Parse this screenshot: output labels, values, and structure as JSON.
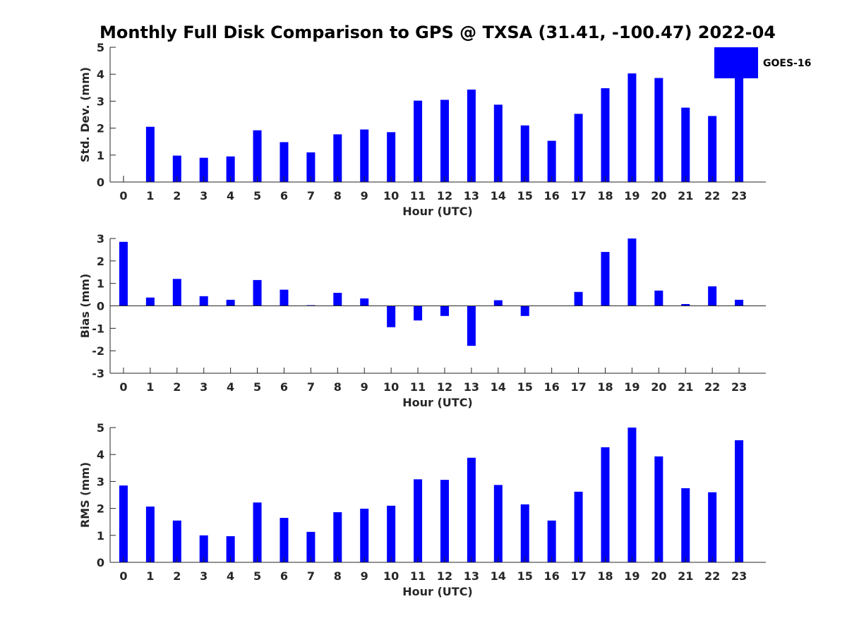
{
  "title": "Monthly Full Disk Comparison to GPS @ TXSA (31.41, -100.47) 2022-04",
  "legend": {
    "label": "GOES-16",
    "color": "#0000ff",
    "placement": "top-right"
  },
  "chart_data": [
    {
      "type": "bar",
      "name": "stddev",
      "xlabel": "Hour (UTC)",
      "ylabel": "Std. Dev. (mm)",
      "ylim": [
        0,
        5
      ],
      "yticks": [
        0,
        1,
        2,
        3,
        4,
        5
      ],
      "categories": [
        0,
        1,
        2,
        3,
        4,
        5,
        6,
        7,
        8,
        9,
        10,
        11,
        12,
        13,
        14,
        15,
        16,
        17,
        18,
        19,
        20,
        21,
        22,
        23
      ],
      "series": [
        {
          "name": "GOES-16",
          "color": "#0000ff",
          "values": [
            0.0,
            2.05,
            0.98,
            0.9,
            0.95,
            1.92,
            1.48,
            1.1,
            1.77,
            1.95,
            1.85,
            3.02,
            3.05,
            3.43,
            2.87,
            2.1,
            1.53,
            2.53,
            3.48,
            4.03,
            3.86,
            2.76,
            2.45,
            3.85
          ]
        }
      ],
      "grid": false
    },
    {
      "type": "bar",
      "name": "bias",
      "xlabel": "Hour (UTC)",
      "ylabel": "Bias (mm)",
      "ylim": [
        -3,
        3
      ],
      "yticks": [
        -3,
        -2,
        -1,
        0,
        1,
        2,
        3
      ],
      "zero_line": true,
      "categories": [
        0,
        1,
        2,
        3,
        4,
        5,
        6,
        7,
        8,
        9,
        10,
        11,
        12,
        13,
        14,
        15,
        16,
        17,
        18,
        19,
        20,
        21,
        22,
        23
      ],
      "series": [
        {
          "name": "GOES-16",
          "color": "#0000ff",
          "values": [
            2.85,
            0.37,
            1.2,
            0.43,
            0.27,
            1.15,
            0.72,
            0.03,
            0.58,
            0.33,
            -0.95,
            -0.65,
            -0.45,
            -1.78,
            0.25,
            -0.45,
            0.0,
            0.62,
            2.4,
            3.0,
            0.68,
            0.08,
            0.87,
            0.27
          ]
        }
      ],
      "grid": false
    },
    {
      "type": "bar",
      "name": "rms",
      "xlabel": "Hour (UTC)",
      "ylabel": "RMS (mm)",
      "ylim": [
        0,
        5
      ],
      "yticks": [
        0,
        1,
        2,
        3,
        4,
        5
      ],
      "categories": [
        0,
        1,
        2,
        3,
        4,
        5,
        6,
        7,
        8,
        9,
        10,
        11,
        12,
        13,
        14,
        15,
        16,
        17,
        18,
        19,
        20,
        21,
        22,
        23
      ],
      "series": [
        {
          "name": "GOES-16",
          "color": "#0000ff",
          "values": [
            2.85,
            2.07,
            1.55,
            1.0,
            0.97,
            2.22,
            1.65,
            1.13,
            1.86,
            1.99,
            2.1,
            3.08,
            3.06,
            3.88,
            2.87,
            2.15,
            1.55,
            2.62,
            4.27,
            5.0,
            3.93,
            2.75,
            2.6,
            4.53
          ]
        }
      ],
      "grid": false
    }
  ]
}
